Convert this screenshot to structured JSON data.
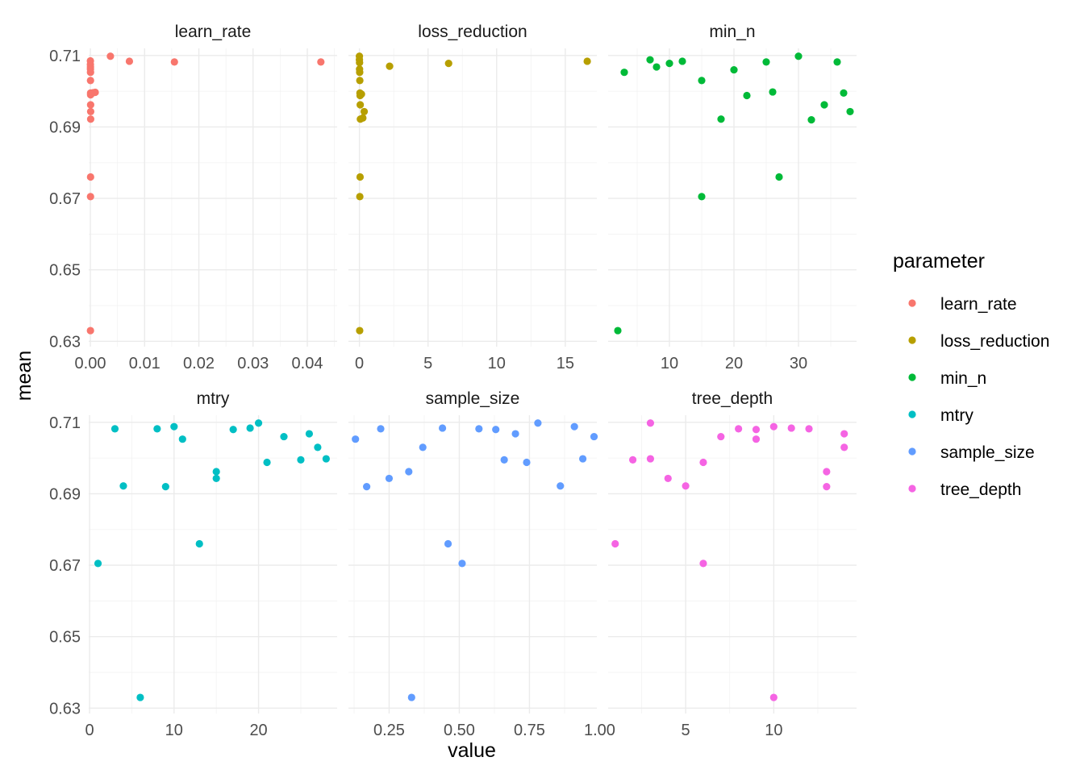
{
  "chart_data": {
    "type": "scatter",
    "xlabel": "value",
    "ylabel": "mean",
    "ylim": [
      0.63,
      0.71
    ],
    "y_ticks": [
      "0.63",
      "0.65",
      "0.67",
      "0.69",
      "0.71"
    ],
    "grid": true,
    "legend": {
      "title": "parameter",
      "position": "right",
      "entries": [
        {
          "label": "learn_rate",
          "color": "#F8766D"
        },
        {
          "label": "loss_reduction",
          "color": "#B79F00"
        },
        {
          "label": "min_n",
          "color": "#00BA38"
        },
        {
          "label": "mtry",
          "color": "#00BFC4"
        },
        {
          "label": "sample_size",
          "color": "#619CFF"
        },
        {
          "label": "tree_depth",
          "color": "#F564E3"
        }
      ]
    },
    "panels": [
      {
        "name": "learn_rate",
        "color": "#F8766D",
        "xlim": [
          -0.0003,
          0.0455
        ],
        "x_ticks": [
          {
            "v": 0,
            "label": "0.00"
          },
          {
            "v": 0.01,
            "label": "0.01"
          },
          {
            "v": 0.02,
            "label": "0.02"
          },
          {
            "v": 0.03,
            "label": "0.03"
          },
          {
            "v": 0.04,
            "label": "0.04"
          }
        ],
        "points": [
          [
            1e-05,
            0.7085
          ],
          [
            1e-05,
            0.7075
          ],
          [
            2e-05,
            0.7068
          ],
          [
            2e-05,
            0.7062
          ],
          [
            3e-05,
            0.7053
          ],
          [
            3e-05,
            0.703
          ],
          [
            4e-05,
            0.6995
          ],
          [
            5e-05,
            0.699
          ],
          [
            5e-05,
            0.6962
          ],
          [
            6e-05,
            0.6943
          ],
          [
            6e-05,
            0.6922
          ],
          [
            4e-05,
            0.676
          ],
          [
            3e-05,
            0.6705
          ],
          [
            2e-05,
            0.633
          ],
          [
            0.0005,
            0.6996
          ],
          [
            0.0009,
            0.6997
          ],
          [
            0.0037,
            0.7098
          ],
          [
            0.0072,
            0.7084
          ],
          [
            0.0155,
            0.7082
          ],
          [
            0.0425,
            0.7082
          ]
        ]
      },
      {
        "name": "loss_reduction",
        "color": "#B79F00",
        "xlim": [
          -0.8,
          17.3
        ],
        "x_ticks": [
          {
            "v": 0,
            "label": "0"
          },
          {
            "v": 5,
            "label": "5"
          },
          {
            "v": 10,
            "label": "10"
          },
          {
            "v": 15,
            "label": "15"
          }
        ],
        "points": [
          [
            0.0,
            0.7098
          ],
          [
            0.0,
            0.7088
          ],
          [
            0.01,
            0.708
          ],
          [
            0.01,
            0.7062
          ],
          [
            0.02,
            0.7053
          ],
          [
            0.03,
            0.703
          ],
          [
            0.04,
            0.6995
          ],
          [
            0.05,
            0.6988
          ],
          [
            0.06,
            0.6962
          ],
          [
            0.07,
            0.6922
          ],
          [
            0.05,
            0.676
          ],
          [
            0.03,
            0.6705
          ],
          [
            0.02,
            0.633
          ],
          [
            0.15,
            0.6992
          ],
          [
            0.25,
            0.6925
          ],
          [
            0.35,
            0.6943
          ],
          [
            2.2,
            0.707
          ],
          [
            6.5,
            0.7078
          ],
          [
            16.6,
            0.7084
          ]
        ]
      },
      {
        "name": "min_n",
        "color": "#00BA38",
        "xlim": [
          0.5,
          39.0
        ],
        "x_ticks": [
          {
            "v": 10,
            "label": "10"
          },
          {
            "v": 20,
            "label": "20"
          },
          {
            "v": 30,
            "label": "30"
          }
        ],
        "points": [
          [
            2,
            0.633
          ],
          [
            3,
            0.7053
          ],
          [
            7,
            0.7088
          ],
          [
            8,
            0.7068
          ],
          [
            10,
            0.7078
          ],
          [
            12,
            0.7084
          ],
          [
            15,
            0.703
          ],
          [
            15,
            0.6705
          ],
          [
            18,
            0.6922
          ],
          [
            20,
            0.706
          ],
          [
            22,
            0.6988
          ],
          [
            25,
            0.7082
          ],
          [
            26,
            0.6998
          ],
          [
            27,
            0.676
          ],
          [
            30,
            0.7098
          ],
          [
            32,
            0.692
          ],
          [
            34,
            0.6962
          ],
          [
            36,
            0.7082
          ],
          [
            37,
            0.6995
          ],
          [
            38,
            0.6943
          ]
        ]
      },
      {
        "name": "mtry",
        "color": "#00BFC4",
        "xlim": [
          -0.1,
          29.3
        ],
        "x_ticks": [
          {
            "v": 0,
            "label": "0"
          },
          {
            "v": 10,
            "label": "10"
          },
          {
            "v": 20,
            "label": "20"
          }
        ],
        "points": [
          [
            1,
            0.6705
          ],
          [
            3,
            0.7082
          ],
          [
            4,
            0.6922
          ],
          [
            6,
            0.633
          ],
          [
            8,
            0.7082
          ],
          [
            9,
            0.692
          ],
          [
            10,
            0.7088
          ],
          [
            11,
            0.7053
          ],
          [
            13,
            0.676
          ],
          [
            15,
            0.6962
          ],
          [
            15,
            0.6943
          ],
          [
            17,
            0.708
          ],
          [
            19,
            0.7084
          ],
          [
            20,
            0.7098
          ],
          [
            21,
            0.6988
          ],
          [
            23,
            0.706
          ],
          [
            25,
            0.6995
          ],
          [
            26,
            0.7068
          ],
          [
            27,
            0.703
          ],
          [
            28,
            0.6998
          ]
        ]
      },
      {
        "name": "sample_size",
        "color": "#619CFF",
        "xlim": [
          0.105,
          0.99
        ],
        "x_ticks": [
          {
            "v": 0.25,
            "label": "0.25"
          },
          {
            "v": 0.5,
            "label": "0.50"
          },
          {
            "v": 0.75,
            "label": "0.75"
          },
          {
            "v": 1.0,
            "label": "1.00"
          }
        ],
        "points": [
          [
            0.13,
            0.7053
          ],
          [
            0.17,
            0.692
          ],
          [
            0.22,
            0.7082
          ],
          [
            0.25,
            0.6943
          ],
          [
            0.32,
            0.6962
          ],
          [
            0.33,
            0.633
          ],
          [
            0.37,
            0.703
          ],
          [
            0.44,
            0.7084
          ],
          [
            0.46,
            0.676
          ],
          [
            0.51,
            0.6705
          ],
          [
            0.57,
            0.7082
          ],
          [
            0.63,
            0.708
          ],
          [
            0.66,
            0.6995
          ],
          [
            0.7,
            0.7068
          ],
          [
            0.74,
            0.6988
          ],
          [
            0.78,
            0.7098
          ],
          [
            0.86,
            0.6922
          ],
          [
            0.91,
            0.7088
          ],
          [
            0.94,
            0.6998
          ],
          [
            0.98,
            0.706
          ]
        ]
      },
      {
        "name": "tree_depth",
        "color": "#F564E3",
        "xlim": [
          0.6,
          14.7
        ],
        "x_ticks": [
          {
            "v": 5,
            "label": "5"
          },
          {
            "v": 10,
            "label": "10"
          }
        ],
        "points": [
          [
            1,
            0.676
          ],
          [
            2,
            0.6995
          ],
          [
            3,
            0.7098
          ],
          [
            3,
            0.6998
          ],
          [
            4,
            0.6943
          ],
          [
            5,
            0.6922
          ],
          [
            6,
            0.6988
          ],
          [
            6,
            0.6705
          ],
          [
            7,
            0.706
          ],
          [
            8,
            0.7082
          ],
          [
            9,
            0.708
          ],
          [
            9,
            0.7053
          ],
          [
            10,
            0.7088
          ],
          [
            10,
            0.633
          ],
          [
            11,
            0.7084
          ],
          [
            12,
            0.7082
          ],
          [
            13,
            0.6962
          ],
          [
            13,
            0.692
          ],
          [
            14,
            0.7068
          ],
          [
            14,
            0.703
          ]
        ]
      }
    ]
  }
}
